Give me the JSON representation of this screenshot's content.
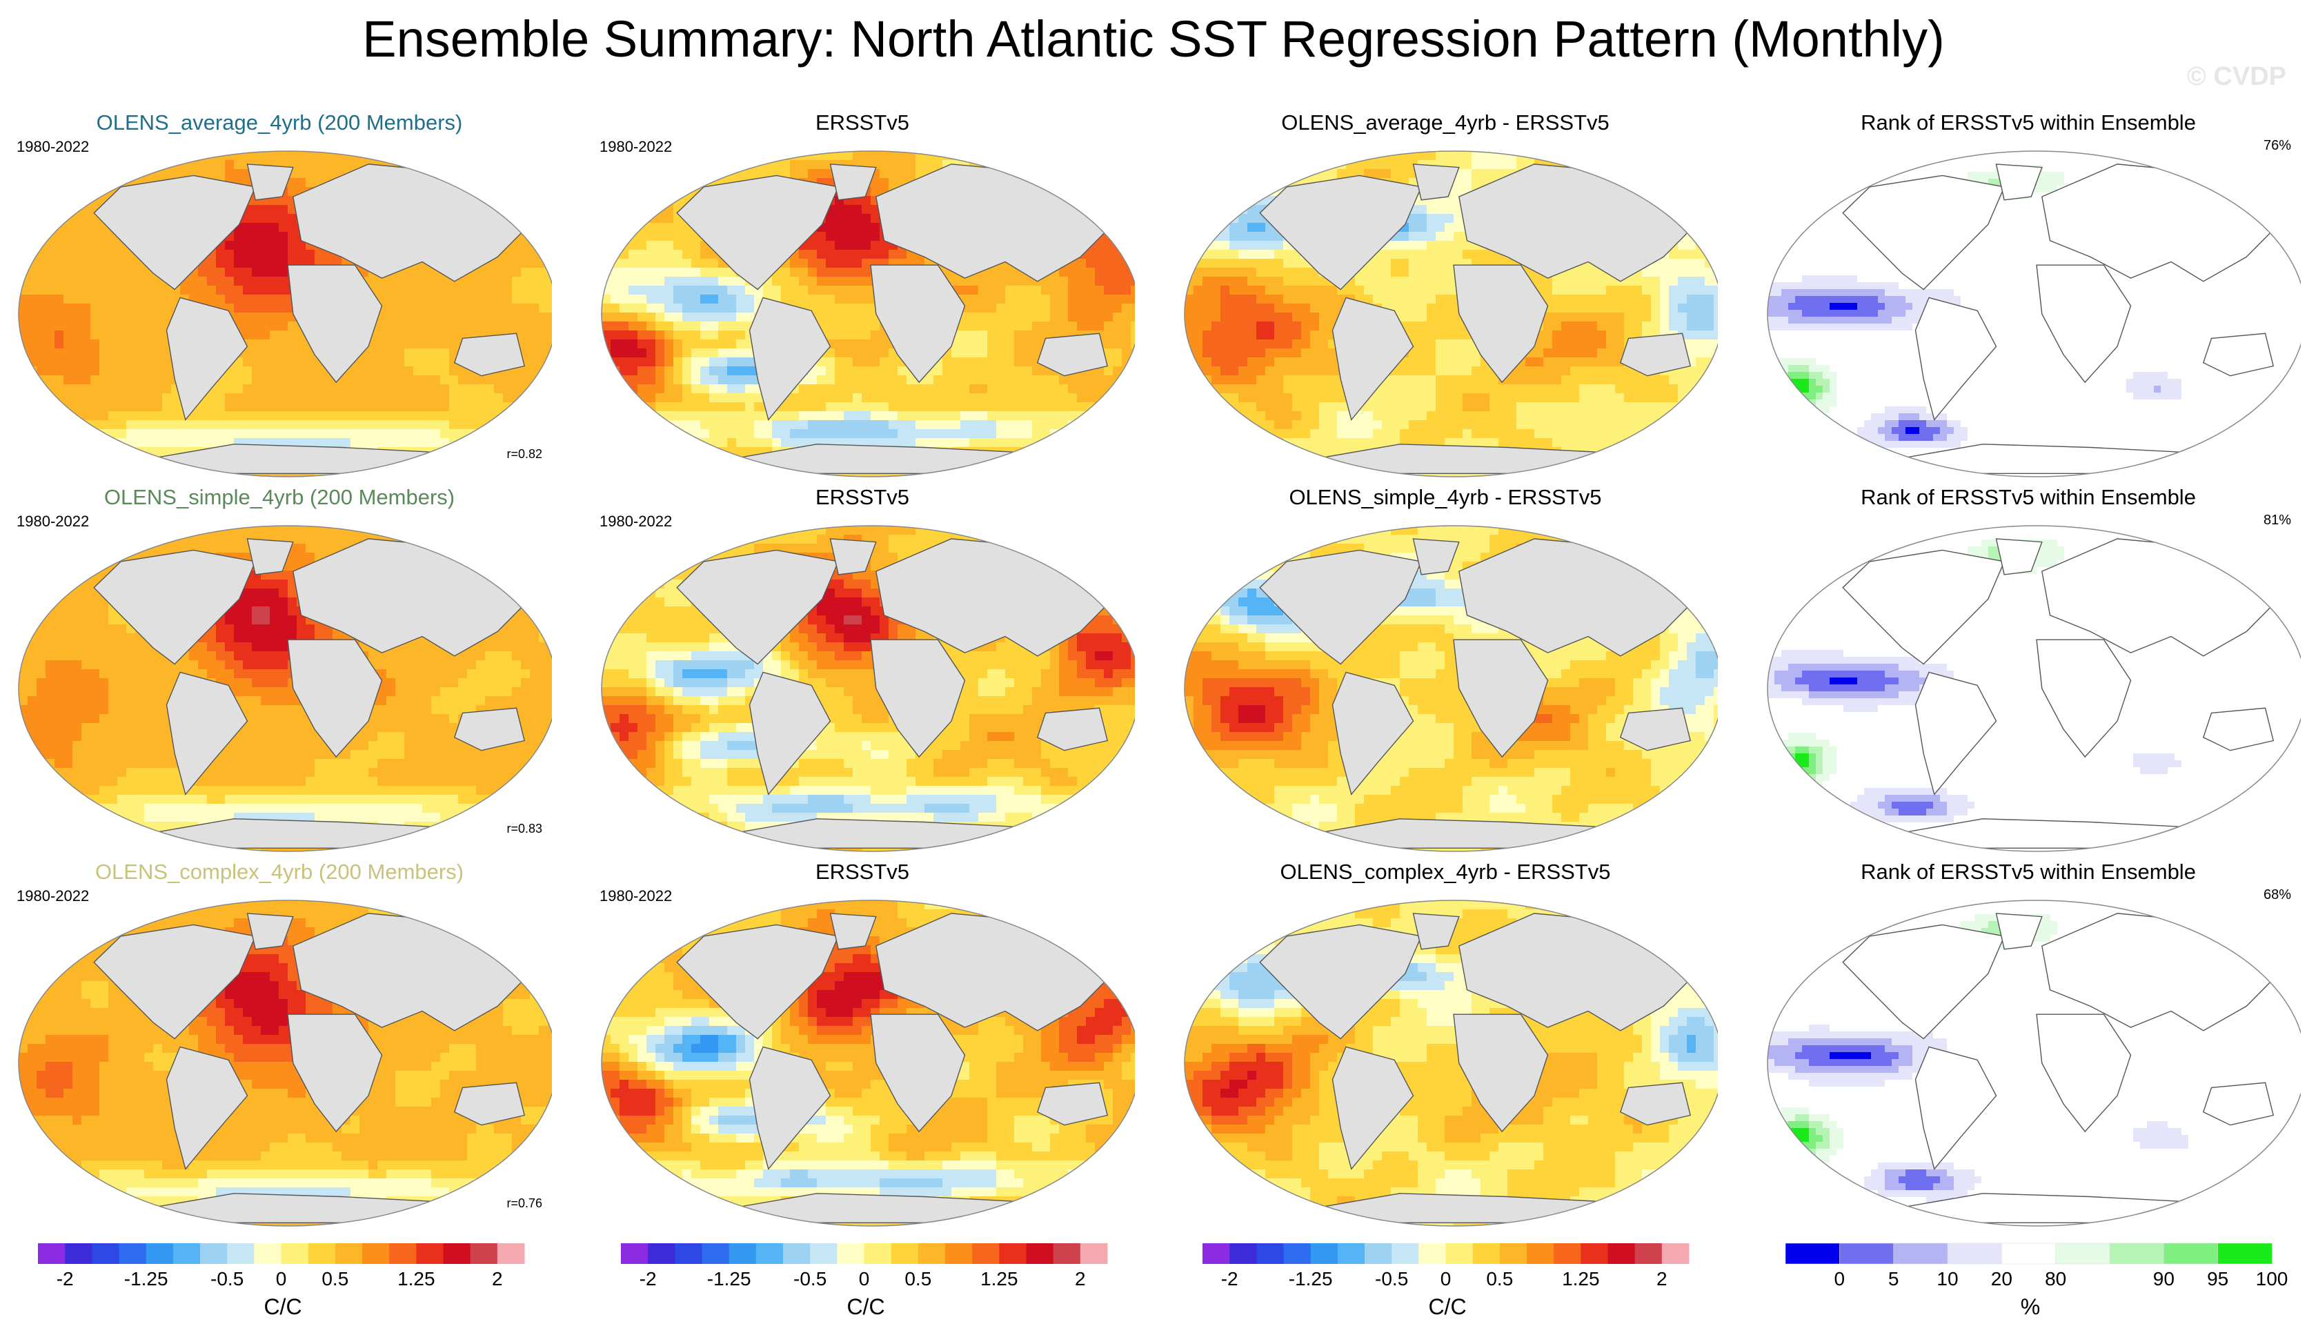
{
  "title": "Ensemble Summary: North Atlantic SST Regression Pattern (Monthly)",
  "watermark": "© CVDP",
  "colors": {
    "diverging": [
      "#8b2be2",
      "#3d2bd9",
      "#2e48e6",
      "#2e6cf0",
      "#3298f0",
      "#55b4f5",
      "#9dd2f2",
      "#c6e6f5",
      "#fffec4",
      "#fef17a",
      "#fed43a",
      "#fdb627",
      "#fb8f1a",
      "#f6661d",
      "#e9301a",
      "#cf0f1f",
      "#d0414e",
      "#f4a8b0"
    ],
    "rank": [
      "#0000ee",
      "#6f6ff0",
      "#b4b4f4",
      "#e4e4fa",
      "#ffffff",
      "#e6fbe6",
      "#b6f4b6",
      "#7ff07f",
      "#19ea19"
    ],
    "land": "#e0e0e0"
  },
  "chart_data": [
    {
      "row": 1,
      "col": 1,
      "type": "heatmap",
      "title": "OLENS_average_4yrb (200 Members)",
      "title_color": "#1f6f8b",
      "period": "1980-2022",
      "stat": "r=0.82",
      "pattern": "ensemble",
      "colormap": "diverging"
    },
    {
      "row": 1,
      "col": 2,
      "type": "heatmap",
      "title": "ERSSTv5",
      "title_color": "#000000",
      "period": "1980-2022",
      "stat": "",
      "pattern": "obs",
      "colormap": "diverging"
    },
    {
      "row": 1,
      "col": 3,
      "type": "heatmap",
      "title": "OLENS_average_4yrb - ERSSTv5",
      "title_color": "#000000",
      "period": "",
      "stat": "",
      "pattern": "diff",
      "colormap": "diverging"
    },
    {
      "row": 1,
      "col": 4,
      "type": "heatmap",
      "title": "Rank of ERSSTv5 within Ensemble",
      "title_color": "#000000",
      "period": "",
      "pct": "76%",
      "pattern": "rank",
      "colormap": "rank"
    },
    {
      "row": 2,
      "col": 1,
      "type": "heatmap",
      "title": "OLENS_simple_4yrb (200 Members)",
      "title_color": "#5a8a5a",
      "period": "1980-2022",
      "stat": "r=0.83",
      "pattern": "ensemble",
      "colormap": "diverging"
    },
    {
      "row": 2,
      "col": 2,
      "type": "heatmap",
      "title": "ERSSTv5",
      "title_color": "#000000",
      "period": "1980-2022",
      "stat": "",
      "pattern": "obs",
      "colormap": "diverging"
    },
    {
      "row": 2,
      "col": 3,
      "type": "heatmap",
      "title": "OLENS_simple_4yrb - ERSSTv5",
      "title_color": "#000000",
      "period": "",
      "stat": "",
      "pattern": "diff",
      "colormap": "diverging"
    },
    {
      "row": 2,
      "col": 4,
      "type": "heatmap",
      "title": "Rank of ERSSTv5 within Ensemble",
      "title_color": "#000000",
      "period": "",
      "pct": "81%",
      "pattern": "rank",
      "colormap": "rank"
    },
    {
      "row": 3,
      "col": 1,
      "type": "heatmap",
      "title": "OLENS_complex_4yrb (200 Members)",
      "title_color": "#c9c27a",
      "period": "1980-2022",
      "stat": "r=0.76",
      "pattern": "ensemble",
      "colormap": "diverging"
    },
    {
      "row": 3,
      "col": 2,
      "type": "heatmap",
      "title": "ERSSTv5",
      "title_color": "#000000",
      "period": "1980-2022",
      "stat": "",
      "pattern": "obs",
      "colormap": "diverging"
    },
    {
      "row": 3,
      "col": 3,
      "type": "heatmap",
      "title": "OLENS_complex_4yrb - ERSSTv5",
      "title_color": "#000000",
      "period": "",
      "stat": "",
      "pattern": "diff",
      "colormap": "diverging"
    },
    {
      "row": 3,
      "col": 4,
      "type": "heatmap",
      "title": "Rank of ERSSTv5 within Ensemble",
      "title_color": "#000000",
      "period": "",
      "pct": "68%",
      "pattern": "rank",
      "colormap": "rank"
    }
  ],
  "colorbars": [
    {
      "colormap": "diverging",
      "unit": "C/C",
      "range": [
        -2.25,
        2.25
      ],
      "ticks": [
        {
          "v": -2,
          "label": "-2"
        },
        {
          "v": -1.25,
          "label": "-1.25"
        },
        {
          "v": -0.5,
          "label": "-0.5"
        },
        {
          "v": 0,
          "label": "0"
        },
        {
          "v": 0.5,
          "label": "0.5"
        },
        {
          "v": 1.25,
          "label": "1.25"
        },
        {
          "v": 2,
          "label": "2"
        }
      ]
    },
    {
      "colormap": "diverging",
      "unit": "C/C",
      "range": [
        -2.25,
        2.25
      ],
      "ticks": [
        {
          "v": -2,
          "label": "-2"
        },
        {
          "v": -1.25,
          "label": "-1.25"
        },
        {
          "v": -0.5,
          "label": "-0.5"
        },
        {
          "v": 0,
          "label": "0"
        },
        {
          "v": 0.5,
          "label": "0.5"
        },
        {
          "v": 1.25,
          "label": "1.25"
        },
        {
          "v": 2,
          "label": "2"
        }
      ]
    },
    {
      "colormap": "diverging",
      "unit": "C/C",
      "range": [
        -2.25,
        2.25
      ],
      "ticks": [
        {
          "v": -2,
          "label": "-2"
        },
        {
          "v": -1.25,
          "label": "-1.25"
        },
        {
          "v": -0.5,
          "label": "-0.5"
        },
        {
          "v": 0,
          "label": "0"
        },
        {
          "v": 0.5,
          "label": "0.5"
        },
        {
          "v": 1.25,
          "label": "1.25"
        },
        {
          "v": 2,
          "label": "2"
        }
      ]
    },
    {
      "colormap": "rank",
      "unit": "%",
      "range": [
        0,
        9
      ],
      "ticks": [
        {
          "v": 1,
          "label": "0"
        },
        {
          "v": 2,
          "label": "5"
        },
        {
          "v": 3,
          "label": "10"
        },
        {
          "v": 4,
          "label": "20"
        },
        {
          "v": 5,
          "label": "80"
        },
        {
          "v": 7,
          "label": "90"
        },
        {
          "v": 8,
          "label": "95"
        },
        {
          "v": 9,
          "label": "100"
        }
      ]
    }
  ]
}
